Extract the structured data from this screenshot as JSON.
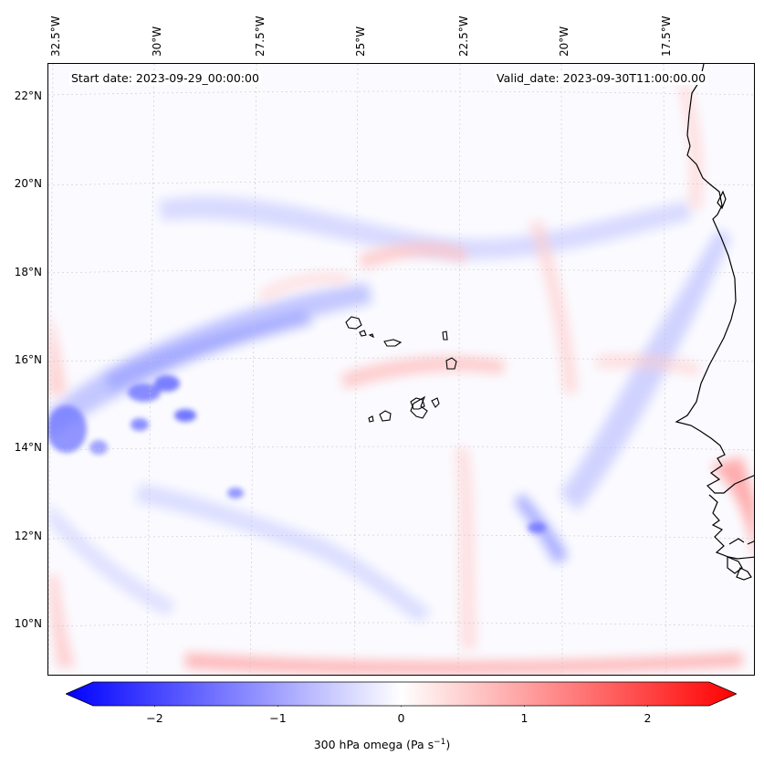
{
  "map": {
    "start_date": "Start date: 2023-09-29_00:00:00",
    "valid_date": "Valid_date: 2023-09-30T11:00:00.00",
    "lon_labels": [
      "32.5°W",
      "30°W",
      "27.5°W",
      "25°W",
      "22.5°W",
      "20°W",
      "17.5°W"
    ],
    "lat_labels": [
      "22°N",
      "20°N",
      "18°N",
      "16°N",
      "14°N",
      "12°N",
      "10°N"
    ]
  },
  "colorbar": {
    "ticks": [
      "−2",
      "−1",
      "0",
      "1",
      "2"
    ],
    "tick_values": [
      -2,
      -1,
      0,
      1,
      2
    ],
    "range": [
      -2.5,
      2.5
    ],
    "label": "300 hPa omega (Pa s",
    "label_sup": "−1",
    "label_end": ")",
    "colors": {
      "negative": "#0000ff",
      "zero": "#ffffff",
      "positive": "#ff0000"
    }
  }
}
